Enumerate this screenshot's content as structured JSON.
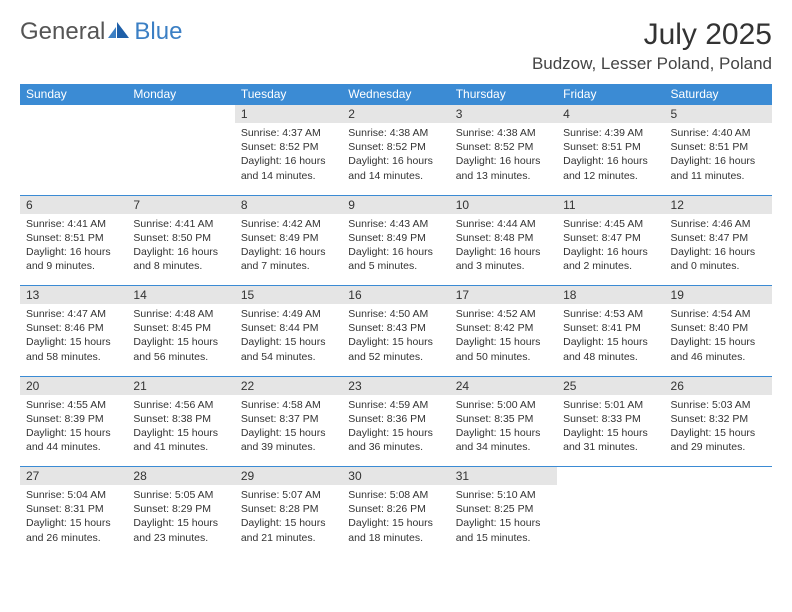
{
  "brand": {
    "part1": "General",
    "part2": "Blue"
  },
  "colors": {
    "header_bg": "#3b8bd4",
    "daynum_bg": "#e5e5e5",
    "accent_line": "#3b8bd4",
    "brand_gray": "#555555",
    "brand_blue": "#3b7fc4",
    "text": "#333333",
    "background": "#ffffff"
  },
  "title": "July 2025",
  "location": "Budzow, Lesser Poland, Poland",
  "day_headers": [
    "Sunday",
    "Monday",
    "Tuesday",
    "Wednesday",
    "Thursday",
    "Friday",
    "Saturday"
  ],
  "weeks": [
    {
      "nums": [
        "",
        "",
        "1",
        "2",
        "3",
        "4",
        "5"
      ],
      "cells": [
        "",
        "",
        "Sunrise: 4:37 AM\nSunset: 8:52 PM\nDaylight: 16 hours and 14 minutes.",
        "Sunrise: 4:38 AM\nSunset: 8:52 PM\nDaylight: 16 hours and 14 minutes.",
        "Sunrise: 4:38 AM\nSunset: 8:52 PM\nDaylight: 16 hours and 13 minutes.",
        "Sunrise: 4:39 AM\nSunset: 8:51 PM\nDaylight: 16 hours and 12 minutes.",
        "Sunrise: 4:40 AM\nSunset: 8:51 PM\nDaylight: 16 hours and 11 minutes."
      ]
    },
    {
      "nums": [
        "6",
        "7",
        "8",
        "9",
        "10",
        "11",
        "12"
      ],
      "cells": [
        "Sunrise: 4:41 AM\nSunset: 8:51 PM\nDaylight: 16 hours and 9 minutes.",
        "Sunrise: 4:41 AM\nSunset: 8:50 PM\nDaylight: 16 hours and 8 minutes.",
        "Sunrise: 4:42 AM\nSunset: 8:49 PM\nDaylight: 16 hours and 7 minutes.",
        "Sunrise: 4:43 AM\nSunset: 8:49 PM\nDaylight: 16 hours and 5 minutes.",
        "Sunrise: 4:44 AM\nSunset: 8:48 PM\nDaylight: 16 hours and 3 minutes.",
        "Sunrise: 4:45 AM\nSunset: 8:47 PM\nDaylight: 16 hours and 2 minutes.",
        "Sunrise: 4:46 AM\nSunset: 8:47 PM\nDaylight: 16 hours and 0 minutes."
      ]
    },
    {
      "nums": [
        "13",
        "14",
        "15",
        "16",
        "17",
        "18",
        "19"
      ],
      "cells": [
        "Sunrise: 4:47 AM\nSunset: 8:46 PM\nDaylight: 15 hours and 58 minutes.",
        "Sunrise: 4:48 AM\nSunset: 8:45 PM\nDaylight: 15 hours and 56 minutes.",
        "Sunrise: 4:49 AM\nSunset: 8:44 PM\nDaylight: 15 hours and 54 minutes.",
        "Sunrise: 4:50 AM\nSunset: 8:43 PM\nDaylight: 15 hours and 52 minutes.",
        "Sunrise: 4:52 AM\nSunset: 8:42 PM\nDaylight: 15 hours and 50 minutes.",
        "Sunrise: 4:53 AM\nSunset: 8:41 PM\nDaylight: 15 hours and 48 minutes.",
        "Sunrise: 4:54 AM\nSunset: 8:40 PM\nDaylight: 15 hours and 46 minutes."
      ]
    },
    {
      "nums": [
        "20",
        "21",
        "22",
        "23",
        "24",
        "25",
        "26"
      ],
      "cells": [
        "Sunrise: 4:55 AM\nSunset: 8:39 PM\nDaylight: 15 hours and 44 minutes.",
        "Sunrise: 4:56 AM\nSunset: 8:38 PM\nDaylight: 15 hours and 41 minutes.",
        "Sunrise: 4:58 AM\nSunset: 8:37 PM\nDaylight: 15 hours and 39 minutes.",
        "Sunrise: 4:59 AM\nSunset: 8:36 PM\nDaylight: 15 hours and 36 minutes.",
        "Sunrise: 5:00 AM\nSunset: 8:35 PM\nDaylight: 15 hours and 34 minutes.",
        "Sunrise: 5:01 AM\nSunset: 8:33 PM\nDaylight: 15 hours and 31 minutes.",
        "Sunrise: 5:03 AM\nSunset: 8:32 PM\nDaylight: 15 hours and 29 minutes."
      ]
    },
    {
      "nums": [
        "27",
        "28",
        "29",
        "30",
        "31",
        "",
        ""
      ],
      "cells": [
        "Sunrise: 5:04 AM\nSunset: 8:31 PM\nDaylight: 15 hours and 26 minutes.",
        "Sunrise: 5:05 AM\nSunset: 8:29 PM\nDaylight: 15 hours and 23 minutes.",
        "Sunrise: 5:07 AM\nSunset: 8:28 PM\nDaylight: 15 hours and 21 minutes.",
        "Sunrise: 5:08 AM\nSunset: 8:26 PM\nDaylight: 15 hours and 18 minutes.",
        "Sunrise: 5:10 AM\nSunset: 8:25 PM\nDaylight: 15 hours and 15 minutes.",
        "",
        ""
      ]
    }
  ]
}
